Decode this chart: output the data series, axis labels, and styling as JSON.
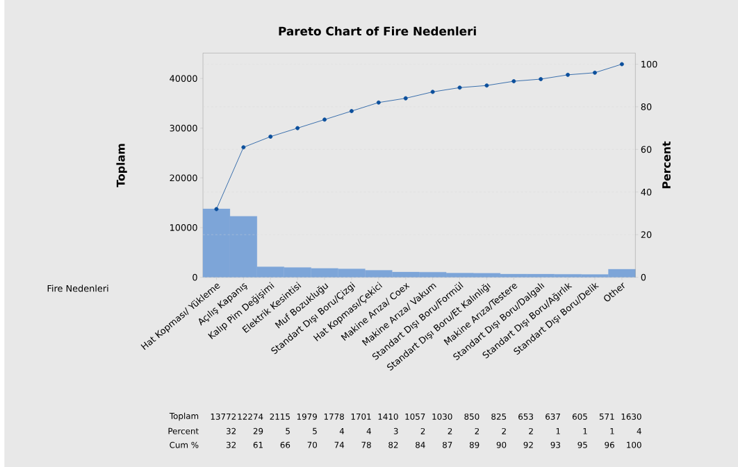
{
  "chart_data": {
    "type": "bar",
    "title": "Pareto Chart of Fire Nedenleri",
    "xlabel": "Fire Nedenleri",
    "ylabel": "Toplam",
    "y2label": "Percent",
    "categories": [
      "Hat Kopması/ Yükleme",
      "Açılış Kapanış",
      "Kalıp Pim Değişimi",
      "Elektrik Kesintisi",
      "Muf Bozukluğu",
      "Standart Dışı Boru/Çizgi",
      "Hat Kopması/Çekici",
      "Makine Arıza/ Coex",
      "Makine Arıza/ Vakum",
      "Standart Dışı Boru/Formül",
      "Standart Dışı Boru/Et Kalınlığı",
      "Makine Arıza/Testere",
      "Standart Dışı Boru/Dalgalı",
      "Standart Dışı Boru/Ağırlık",
      "Standart Dışı Boru/Delik",
      "Other"
    ],
    "series": [
      {
        "color": "#7da5d8",
        "values": [
          13772,
          12274,
          2115,
          1979,
          1778,
          1701,
          1410,
          1057,
          1030,
          850,
          825,
          653,
          637,
          605,
          571,
          1630
        ]
      },
      {
        "type": "line",
        "axis": "y2",
        "color": "#0b4f9c",
        "values": [
          32,
          61,
          66,
          70,
          74,
          78,
          82,
          84,
          87,
          89,
          90,
          92,
          93,
          95,
          96,
          100
        ]
      }
    ],
    "ylim": [
      0,
      45100
    ],
    "yticks": [
      0,
      10000,
      20000,
      30000,
      40000
    ],
    "y2lim": [
      0,
      105.2
    ],
    "y2ticks": [
      0,
      20,
      40,
      60,
      80,
      100
    ],
    "grid": true,
    "marker": "circle",
    "annotations": [
      "Toplam",
      "13772",
      "12274",
      "2115",
      "1979",
      "1778",
      "1701",
      "1410",
      "1057",
      "1030",
      "850",
      "825",
      "653",
      "637",
      "605",
      "571",
      "1630",
      "Percent",
      "32",
      "29",
      "5",
      "5",
      "4",
      "4",
      "3",
      "2",
      "2",
      "2",
      "2",
      "2",
      "1",
      "1",
      "1",
      "4",
      "Cum %",
      "32",
      "61",
      "66",
      "70",
      "74",
      "78",
      "82",
      "84",
      "87",
      "89",
      "90",
      "92",
      "93",
      "95",
      "96",
      "100"
    ]
  }
}
